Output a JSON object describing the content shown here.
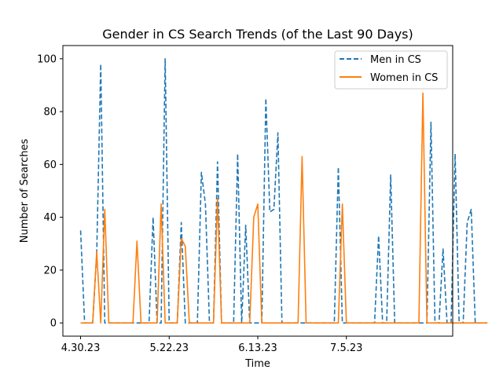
{
  "chart_data": {
    "type": "line",
    "title": "Gender in CS Search Trends (of the Last 90 Days)",
    "xlabel": "Time",
    "ylabel": "Number of Searches",
    "x_ticks": [
      {
        "day": 0,
        "label": "4.30.23"
      },
      {
        "day": 22,
        "label": "5.22.23"
      },
      {
        "day": 44,
        "label": "6.13.23"
      },
      {
        "day": 66,
        "label": "7.5.23"
      }
    ],
    "xlim": [
      -4.4,
      92.4
    ],
    "ylim": [
      -5,
      105
    ],
    "y_ticks": [
      0,
      20,
      40,
      60,
      80,
      100
    ],
    "grid": false,
    "legend": "top-right",
    "series": [
      {
        "name": "Men in CS",
        "style": "dashed",
        "color": "#1f77b4",
        "values": [
          35,
          0,
          0,
          0,
          26,
          98,
          0,
          0,
          0,
          0,
          0,
          0,
          0,
          0,
          0,
          0,
          0,
          0,
          40,
          0,
          0,
          100,
          0,
          0,
          0,
          38,
          0,
          0,
          0,
          0,
          57,
          45,
          0,
          0,
          61,
          0,
          0,
          0,
          0,
          64,
          0,
          37,
          0,
          0,
          0,
          0,
          85,
          42,
          43,
          72,
          0,
          0,
          0,
          0,
          0,
          0,
          0,
          0,
          0,
          0,
          0,
          0,
          0,
          0,
          59,
          0,
          0,
          0,
          0,
          0,
          0,
          0,
          0,
          0,
          33,
          0,
          0,
          56,
          0,
          0,
          0,
          0,
          0,
          0,
          0,
          0,
          0,
          76,
          0,
          0,
          28,
          0,
          0,
          64,
          0,
          0,
          38,
          43,
          0,
          0,
          0,
          0
        ]
      },
      {
        "name": "Women in CS",
        "style": "solid",
        "color": "#ff7f0e",
        "values": [
          0,
          0,
          0,
          0,
          27,
          0,
          43,
          0,
          0,
          0,
          0,
          0,
          0,
          0,
          31,
          0,
          0,
          0,
          0,
          0,
          45,
          0,
          0,
          0,
          0,
          32,
          29,
          0,
          0,
          0,
          0,
          0,
          0,
          0,
          47,
          0,
          0,
          0,
          0,
          0,
          0,
          0,
          0,
          40,
          45,
          0,
          0,
          0,
          0,
          0,
          0,
          0,
          0,
          0,
          0,
          63,
          0,
          0,
          0,
          0,
          0,
          0,
          0,
          0,
          0,
          45,
          0,
          0,
          0,
          0,
          0,
          0,
          0,
          0,
          0,
          0,
          0,
          0,
          0,
          0,
          0,
          0,
          0,
          0,
          0,
          87,
          0,
          0,
          0,
          0,
          0,
          0,
          0,
          0,
          0,
          0,
          0,
          0,
          0,
          0,
          0,
          0
        ]
      }
    ]
  }
}
